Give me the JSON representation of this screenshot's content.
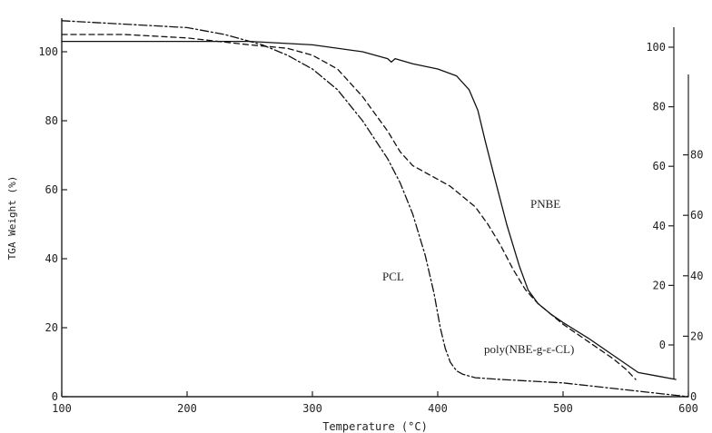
{
  "chart_data": {
    "type": "line",
    "xlabel": "Temperature (°C)",
    "ylabel": "TGA Weight (%)",
    "xlim": [
      100,
      600
    ],
    "ylim": [
      0,
      110
    ],
    "x_ticks": [
      "100",
      "200",
      "300",
      "400",
      "500",
      "600"
    ],
    "y_ticks": [
      "0",
      "20",
      "40",
      "60",
      "80",
      "100"
    ],
    "right_axis_a_ticks": [
      "0",
      "20",
      "40",
      "60",
      "80",
      "100"
    ],
    "right_axis_b_ticks": [
      "0",
      "20",
      "40",
      "60",
      "80"
    ],
    "grid": false,
    "series": [
      {
        "name": "PNBE",
        "style": "solid",
        "x": [
          100,
          150,
          200,
          250,
          300,
          340,
          360,
          363,
          366,
          380,
          400,
          415,
          425,
          432,
          438,
          445,
          455,
          465,
          472,
          480,
          490,
          500,
          520,
          540,
          560,
          575,
          590
        ],
        "y": [
          103,
          103,
          103,
          103,
          102,
          100,
          98,
          97,
          98,
          96.5,
          95,
          93,
          89,
          83,
          74,
          64,
          50,
          38,
          31,
          27,
          24,
          21.5,
          17,
          12,
          7,
          6,
          5
        ]
      },
      {
        "name": "PCL",
        "style": "dash-dot",
        "x": [
          100,
          150,
          200,
          230,
          260,
          280,
          300,
          320,
          340,
          360,
          370,
          380,
          390,
          397,
          402,
          406,
          410,
          415,
          420,
          430,
          450,
          500,
          550,
          600
        ],
        "y": [
          109,
          108,
          107,
          105,
          102,
          99,
          95,
          89,
          80,
          69,
          62,
          53,
          41,
          30,
          20,
          14,
          10,
          7.5,
          6.5,
          5.5,
          5,
          4,
          2,
          0
        ]
      },
      {
        "name": "poly(NBE-g-ε-CL)",
        "style": "dashed",
        "x": [
          100,
          150,
          200,
          250,
          280,
          300,
          320,
          340,
          360,
          370,
          380,
          390,
          400,
          410,
          420,
          430,
          440,
          450,
          460,
          470,
          480,
          500,
          520,
          540,
          550,
          558
        ],
        "y": [
          105,
          105,
          104,
          102,
          101,
          99,
          95,
          87,
          77,
          71,
          67,
          65,
          63,
          61,
          58,
          55,
          50,
          44,
          37,
          31,
          27,
          21,
          16,
          11,
          8,
          5
        ]
      }
    ],
    "annotations": [
      "PNBE",
      "PCL",
      "poly(NBE-g-ε-CL)"
    ]
  }
}
